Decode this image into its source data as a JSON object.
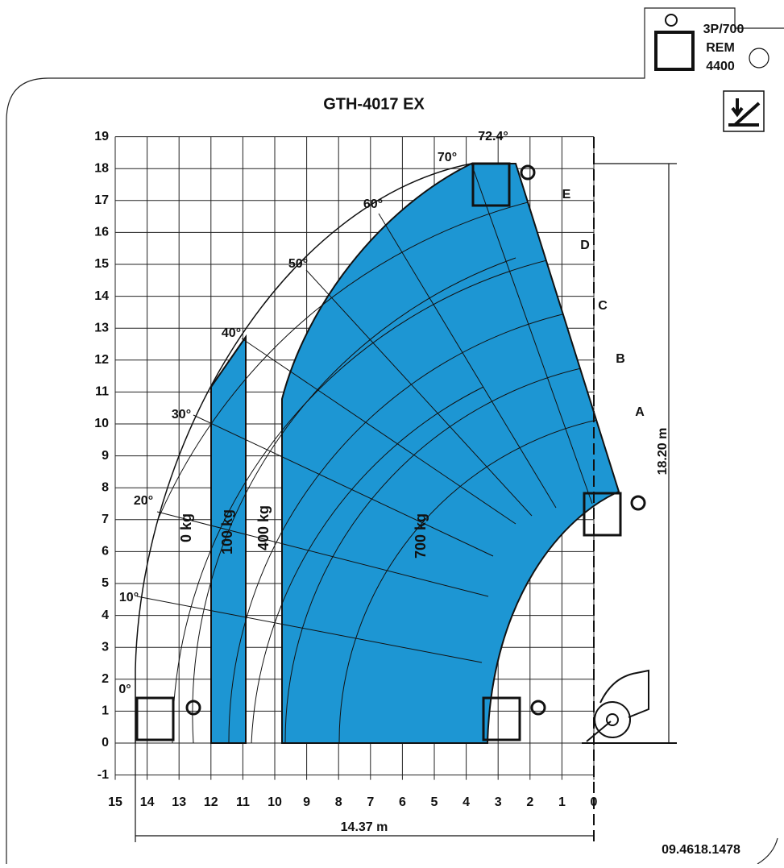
{
  "title": "GTH-4017 EX",
  "badge": {
    "line1": "3P/700",
    "line2": "REM",
    "line3": "4400"
  },
  "x_ticks": [
    15,
    14,
    13,
    12,
    11,
    10,
    9,
    8,
    7,
    6,
    5,
    4,
    3,
    2,
    1,
    0
  ],
  "y_ticks": [
    -1,
    0,
    1,
    2,
    3,
    4,
    5,
    6,
    7,
    8,
    9,
    10,
    11,
    12,
    13,
    14,
    15,
    16,
    17,
    18,
    19
  ],
  "angles": [
    "72.4°",
    "70°",
    "60°",
    "50°",
    "40°",
    "30°",
    "20°",
    "10°",
    "0°"
  ],
  "loads": [
    "0 kg",
    "100 kg",
    "400 kg",
    "700 kg"
  ],
  "zones": [
    "A",
    "B",
    "C",
    "D",
    "E"
  ],
  "height_dimension": "18.20 m",
  "reach_dimension": "14.37 m",
  "code": "09.4618.1478"
}
